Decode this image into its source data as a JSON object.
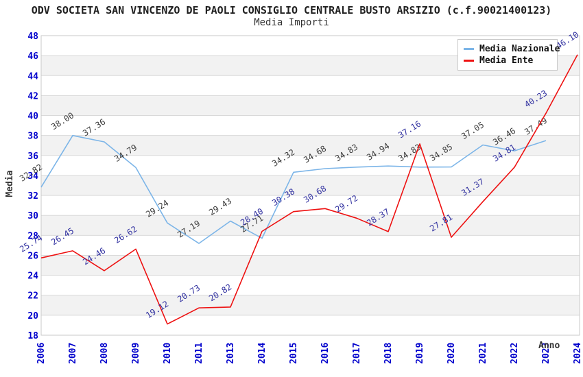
{
  "title": "ODV SOCIETA SAN VINCENZO DE PAOLI CONSIGLIO CENTRALE BUSTO ARSIZIO (c.f.90021400123)",
  "subtitle": "Media Importi",
  "axes": {
    "y_title": "Media",
    "x_title": "Anno",
    "y_min": 18,
    "y_max": 48,
    "y_step": 2
  },
  "legend": {
    "items": [
      {
        "label": "Media Nazionale",
        "color": "#7cb5e8"
      },
      {
        "label": "Media Ente",
        "color": "#ee1111"
      }
    ]
  },
  "colors": {
    "tick_label": "#0000cc",
    "gridline": "#d9d9d9",
    "band": "#f2f2f2",
    "plot_border": "#c9c9c9",
    "nazionale_line": "#7cb5e8",
    "nazionale_value_label": "#3d3d3d",
    "ente_line": "#ee1111",
    "ente_value_label": "#3131a0"
  },
  "chart_data": {
    "type": "line",
    "title": "Media Importi",
    "xlabel": "Anno",
    "ylabel": "Media",
    "ylim": [
      18,
      48
    ],
    "grid": true,
    "legend_position": "top-right",
    "categories": [
      "2006",
      "2007",
      "2008",
      "2009",
      "2010",
      "2011",
      "2013",
      "2014",
      "2015",
      "2016",
      "2017",
      "2018",
      "2019",
      "2020",
      "2021",
      "2022",
      "2023",
      "2024"
    ],
    "series": [
      {
        "name": "Media Nazionale",
        "color": "#7cb5e8",
        "label_color": "#3d3d3d",
        "values": [
          32.82,
          38.0,
          37.36,
          34.79,
          29.24,
          27.19,
          29.43,
          27.71,
          34.32,
          34.68,
          34.83,
          34.94,
          34.83,
          34.85,
          37.05,
          36.46,
          37.49,
          null
        ]
      },
      {
        "name": "Media Ente",
        "color": "#ee1111",
        "label_color": "#3131a0",
        "values": [
          25.74,
          26.45,
          24.46,
          26.62,
          19.12,
          20.73,
          20.82,
          28.4,
          30.38,
          30.68,
          29.72,
          28.37,
          37.16,
          27.81,
          31.37,
          34.81,
          40.23,
          46.1
        ]
      }
    ]
  }
}
